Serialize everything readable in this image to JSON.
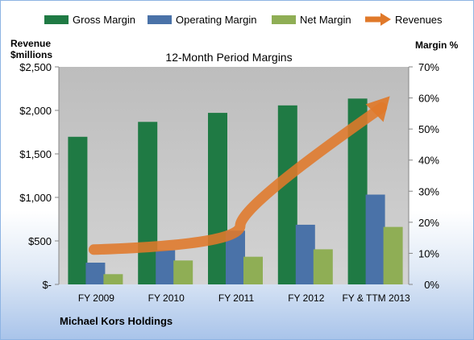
{
  "chart_data": {
    "type": "bar",
    "title": "12-Month Period Margins",
    "categories": [
      "FY 2009",
      "FY 2010",
      "FY 2011",
      "FY 2012",
      "FY & TTM 2013"
    ],
    "series": [
      {
        "name": "Gross Margin",
        "axis": "right",
        "values": [
          47.5,
          52.3,
          55.2,
          57.6,
          59.8
        ]
      },
      {
        "name": "Operating Margin",
        "axis": "right",
        "values": [
          7.0,
          11.0,
          17.3,
          19.2,
          28.9
        ]
      },
      {
        "name": "Net Margin",
        "axis": "right",
        "values": [
          3.3,
          7.7,
          8.9,
          11.3,
          18.5
        ]
      }
    ],
    "arrow_series": {
      "name": "Revenues",
      "axis": "left",
      "values": [
        400,
        500,
        750,
        1100,
        2200
      ]
    },
    "left_axis": {
      "label_line1": "Revenue",
      "label_line2": "$millions",
      "range": [
        0,
        2500
      ],
      "ticks": [
        {
          "value": 0,
          "label": "$-"
        },
        {
          "value": 500,
          "label": "$500"
        },
        {
          "value": 1000,
          "label": "$1,000"
        },
        {
          "value": 1500,
          "label": "$1,500"
        },
        {
          "value": 2000,
          "label": "$2,000"
        },
        {
          "value": 2500,
          "label": "$2,500"
        }
      ]
    },
    "right_axis": {
      "label": "Margin %",
      "range": [
        0,
        70
      ],
      "ticks": [
        {
          "value": 0,
          "label": "0%"
        },
        {
          "value": 10,
          "label": "10%"
        },
        {
          "value": 20,
          "label": "20%"
        },
        {
          "value": 30,
          "label": "30%"
        },
        {
          "value": 40,
          "label": "40%"
        },
        {
          "value": 50,
          "label": "50%"
        },
        {
          "value": 60,
          "label": "60%"
        },
        {
          "value": 70,
          "label": "70%"
        }
      ]
    },
    "legend_position": "top",
    "grid": false,
    "footer": "Michael Kors Holdings",
    "colors": {
      "Gross Margin": "#1f7a44",
      "Operating Margin": "#4a72a8",
      "Net Margin": "#8fae55",
      "Revenues": "#e0792a",
      "plot_area": "#b8b8b8",
      "footer_text": "#17365d"
    }
  }
}
